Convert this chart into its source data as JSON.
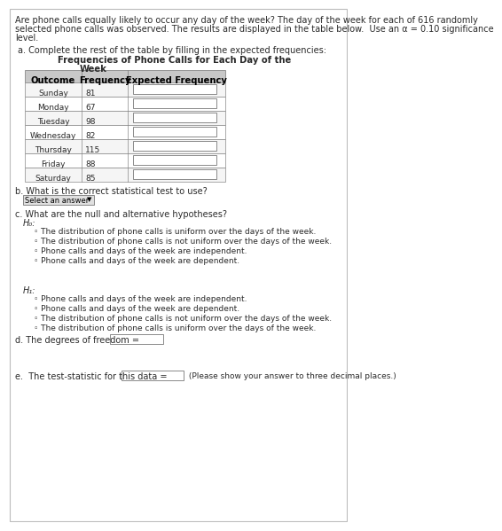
{
  "title_lines": [
    "Are phone calls equally likely to occur any day of the week? The day of the week for each of 616 randomly",
    "selected phone calls was observed. The results are displayed in the table below.  Use an α = 0.10 significance",
    "level."
  ],
  "section_a": "a. Complete the rest of the table by filling in the expected frequencies:",
  "table_title1": "Frequencies of Phone Calls for Each Day of the",
  "table_title2": "Week",
  "headers": [
    "Outcome",
    "Frequency",
    "Expected Frequency"
  ],
  "rows": [
    [
      "Sunday",
      "81"
    ],
    [
      "Monday",
      "67"
    ],
    [
      "Tuesday",
      "98"
    ],
    [
      "Wednesday",
      "82"
    ],
    [
      "Thursday",
      "115"
    ],
    [
      "Friday",
      "88"
    ],
    [
      "Saturday",
      "85"
    ]
  ],
  "section_b": "b. What is the correct statistical test to use?",
  "btn_label": "Select an answer",
  "section_c": "c. What are the null and alternative hypotheses?",
  "H0": "H₀:",
  "H0_opts": [
    "◦ The distribution of phone calls is uniform over the days of the week.",
    "◦ The distribution of phone calls is not uniform over the days of the week.",
    "◦ Phone calls and days of the week are independent.",
    "◦ Phone calls and days of the week are dependent."
  ],
  "H1": "H₁:",
  "H1_opts": [
    "◦ Phone calls and days of the week are independent.",
    "◦ Phone calls and days of the week are dependent.",
    "◦ The distribution of phone calls is not uniform over the days of the week.",
    "◦ The distribution of phone calls is uniform over the days of the week."
  ],
  "section_d": "d. The degrees of freedom = ",
  "section_e_pre": "e.  The test-statistic for this data = ",
  "section_e_post": " (Please show your answer to three decimal places.)",
  "bg": "#ffffff",
  "border": "#bbbbbb",
  "header_fill": "#c8c8c8",
  "text_dark": "#2a2a2a",
  "text_mid": "#444444",
  "input_border": "#777777",
  "input_fill": "#ffffff",
  "fs_title": 7.0,
  "fs_body": 7.0,
  "fs_small": 6.5,
  "fs_bold": 7.2
}
